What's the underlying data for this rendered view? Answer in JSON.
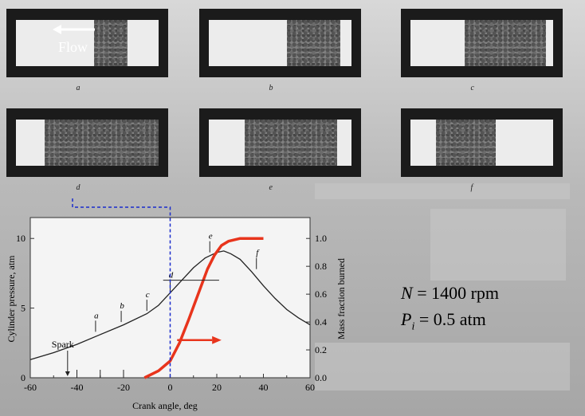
{
  "photos": [
    {
      "label": "a",
      "flame_start": 0.55,
      "flame_end": 0.78
    },
    {
      "label": "b",
      "flame_start": 0.55,
      "flame_end": 0.92
    },
    {
      "label": "c",
      "flame_start": 0.38,
      "flame_end": 0.95
    },
    {
      "label": "d",
      "flame_start": 0.2,
      "flame_end": 1.0
    },
    {
      "label": "e",
      "flame_start": 0.25,
      "flame_end": 0.9
    },
    {
      "label": "f",
      "flame_start": 0.18,
      "flame_end": 0.6
    }
  ],
  "flow_label": "Flow",
  "equation": {
    "line1_var": "N",
    "line1_rest": " = 1400 rpm",
    "line2_var": "P",
    "line2_sub": "i",
    "line2_rest": " = 0.5 atm"
  },
  "colors": {
    "curve": "#e8341c",
    "dashed": "#1a2ccc",
    "arrow": "#e8341c"
  },
  "chart_data": {
    "type": "line",
    "xlabel": "Crank angle, deg",
    "ylabel": "Cylinder pressure, atm",
    "y2label": "Mass fraction burned",
    "xlim": [
      -60,
      60
    ],
    "ylim": [
      0,
      11.5
    ],
    "y2lim": [
      0,
      1.15
    ],
    "xticks": [
      "-60",
      "-40",
      "-20",
      "0",
      "20",
      "40",
      "60"
    ],
    "yticks": [
      "0",
      "5",
      "10"
    ],
    "y2ticks": [
      "0.0",
      "0.2",
      "0.4",
      "0.6",
      "0.8",
      "1.0"
    ],
    "series": [
      {
        "values_x": [
          -60,
          -50,
          -40,
          -30,
          -20,
          -10,
          -5,
          0,
          5,
          10,
          15,
          20,
          23,
          26,
          30,
          35,
          40,
          45,
          50,
          55,
          60
        ],
        "values_y": [
          1.3,
          1.8,
          2.4,
          3.1,
          3.8,
          4.6,
          5.2,
          6.1,
          7.0,
          7.9,
          8.6,
          9.0,
          9.1,
          8.9,
          8.5,
          7.6,
          6.6,
          5.7,
          4.9,
          4.3,
          3.8
        ]
      },
      {
        "axis": "y2",
        "values_x": [
          -11,
          -5,
          0,
          4,
          8,
          12,
          16,
          19,
          22,
          25,
          30,
          35,
          40
        ],
        "values_y": [
          0.0,
          0.05,
          0.12,
          0.25,
          0.42,
          0.6,
          0.78,
          0.88,
          0.95,
          0.98,
          1.0,
          1.0,
          1.0
        ]
      }
    ],
    "annotations": [
      {
        "text": "Spark",
        "x": -44,
        "y": 0
      },
      {
        "text": "a",
        "x": -32,
        "y": 3.3
      },
      {
        "text": "b",
        "x": -21,
        "y": 4.0
      },
      {
        "text": "c",
        "x": -10,
        "y": 4.8
      },
      {
        "text": "d",
        "x": 0,
        "y": 6.2
      },
      {
        "text": "e",
        "x": 17,
        "y": 9.0
      },
      {
        "text": "f",
        "x": 37,
        "y": 7.8
      }
    ],
    "grid": false
  }
}
